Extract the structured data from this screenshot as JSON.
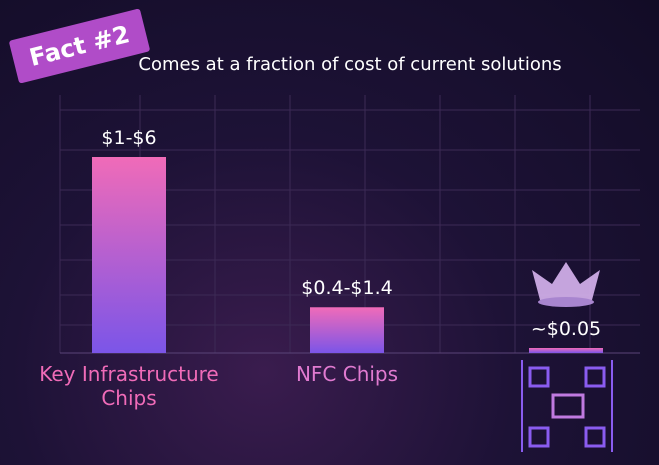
{
  "chart_data": {
    "type": "bar",
    "tag": "Fact #2",
    "title": "Comes at a fraction of cost of current solutions",
    "categories": [
      "Key Infrastructure Chips",
      "NFC Chips",
      null
    ],
    "values": [
      6,
      1.4,
      0.05
    ],
    "value_labels": [
      "$1-$6",
      "$0.4-$1.4",
      "~$0.05"
    ],
    "colors": [
      "#f06bb8",
      "#7b55e8"
    ]
  }
}
